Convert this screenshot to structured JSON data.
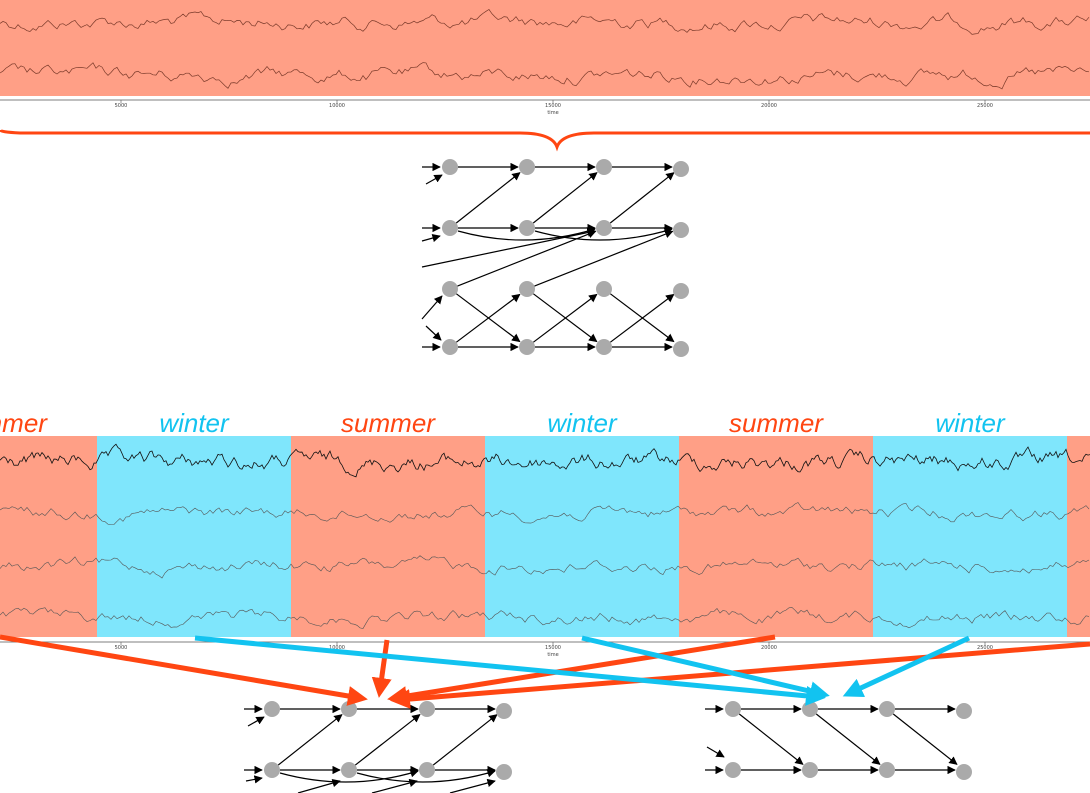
{
  "colors": {
    "summer": "#FF9F86",
    "winter": "#7FE6FC",
    "summer_accent": "#FF4612",
    "winter_accent": "#12C3F0",
    "node": "#AAAAAA",
    "edge": "#000000"
  },
  "time_axis": {
    "ticks": [
      "5000",
      "10000",
      "15000",
      "20000",
      "25000"
    ],
    "label": "time"
  },
  "seasons": [
    {
      "label": "summer",
      "type": "summer"
    },
    {
      "label": "winter",
      "type": "winter"
    },
    {
      "label": "summer",
      "type": "summer"
    },
    {
      "label": "winter",
      "type": "winter"
    },
    {
      "label": "summer",
      "type": "summer"
    },
    {
      "label": "winter",
      "type": "winter"
    },
    {
      "label": "",
      "type": "summer"
    }
  ],
  "top_panel": {
    "series_count": 2,
    "background": "summer"
  },
  "bottom_panel": {
    "series_count": 4
  },
  "graphs": {
    "combined": {
      "rows": 4,
      "lags": 4
    },
    "summer": {
      "rows": 2,
      "lags": 4
    },
    "winter": {
      "rows": 2,
      "lags": 4
    }
  }
}
